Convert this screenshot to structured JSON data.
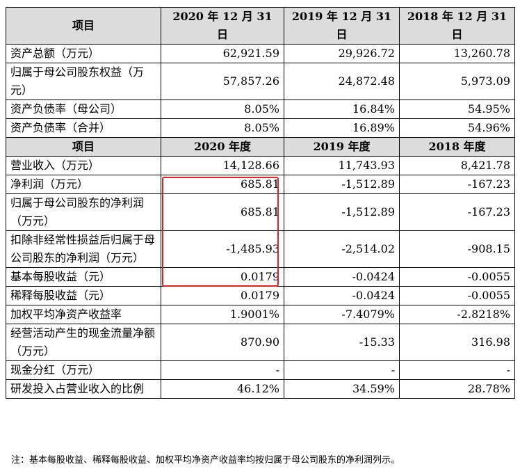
{
  "header1": [
    "项目",
    "2020 年 12 月 31 日",
    "2019 年 12 月 31 日",
    "2018 年 12 月 31 日"
  ],
  "section1": [
    {
      "label": "资产总额（万元）",
      "values": [
        "62,921.59",
        "29,926.72",
        "13,260.78"
      ]
    },
    {
      "label": "归属于母公司股东权益（万元）",
      "values": [
        "57,857.26",
        "24,872.48",
        "5,973.09"
      ]
    },
    {
      "label": "资产负债率（母公司）",
      "values": [
        "8.05%",
        "16.84%",
        "54.95%"
      ]
    },
    {
      "label": "资产负债率（合并）",
      "values": [
        "8.05%",
        "16.89%",
        "54.96%"
      ]
    }
  ],
  "header2": [
    "项目",
    "2020 年度",
    "2019 年度",
    "2018 年度"
  ],
  "section2": [
    {
      "label": "营业收入（万元）",
      "values": [
        "14,128.66",
        "11,743.93",
        "8,421.78"
      ]
    },
    {
      "label": "净利润（万元）",
      "values": [
        "685.81",
        "-1,512.89",
        "-167.23"
      ]
    },
    {
      "label": "归属于母公司股东的净利润（万元）",
      "values": [
        "685.81",
        "-1,512.89",
        "-167.23"
      ]
    },
    {
      "label": "扣除非经常性损益后归属于母公司股东的净利润（万元）",
      "values": [
        "-1,485.93",
        "-2,514.02",
        "-908.15"
      ]
    },
    {
      "label": "基本每股收益（元）",
      "values": [
        "0.0179",
        "-0.0424",
        "-0.0055"
      ]
    },
    {
      "label": "稀释每股收益（元）",
      "values": [
        "0.0179",
        "-0.0424",
        "-0.0055"
      ]
    },
    {
      "label": "加权平均净资产收益率",
      "values": [
        "1.9001%",
        "-7.4079%",
        "-2.8218%"
      ]
    },
    {
      "label": "经营活动产生的现金流量净额（万元）",
      "values": [
        "870.90",
        "-15.33",
        "316.98"
      ]
    },
    {
      "label": "现金分红（万元）",
      "values": [
        "-",
        "-",
        "-"
      ]
    },
    {
      "label": "研发投入占营业收入的比例",
      "values": [
        "46.12%",
        "34.59%",
        "28.78%"
      ]
    }
  ],
  "note": "注：基本每股收益、稀释每股收益、加权平均净资产收益率均按归属于母公司股东的净利润列示。",
  "highlight_color": "#e02020"
}
